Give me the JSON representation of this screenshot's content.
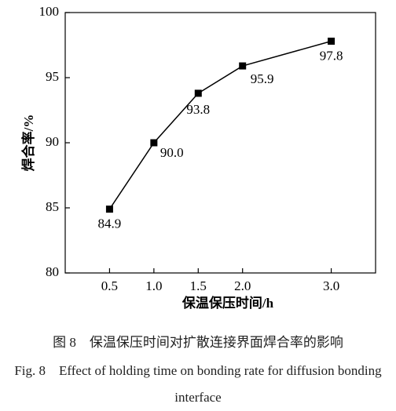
{
  "chart_data": {
    "type": "line",
    "x_label": "保温保压时间/h",
    "y_label": "焊合率/%",
    "x": [
      0.5,
      1.0,
      1.5,
      2.0,
      3.0
    ],
    "values": [
      84.9,
      90.0,
      93.8,
      95.9,
      97.8
    ],
    "value_labels": [
      "84.9",
      "90.0",
      "93.8",
      "95.9",
      "97.8"
    ],
    "color": "#000000",
    "xlim": [
      0,
      3.5
    ],
    "xticks": [
      0.5,
      {
        "value": 1,
        "label": "1.0"
      },
      1.5,
      {
        "value": 2,
        "label": "2.0"
      },
      {
        "value": 3,
        "label": "3.0"
      }
    ],
    "ylim": [
      80,
      100
    ],
    "yticks": [
      80,
      85,
      90,
      95,
      100
    ],
    "grid": false
  },
  "caption_zh": "图 8　保温保压时间对扩散连接界面焊合率的影响",
  "caption_en": "Fig. 8　Effect of holding time on bonding rate for diffusion bonding interface"
}
